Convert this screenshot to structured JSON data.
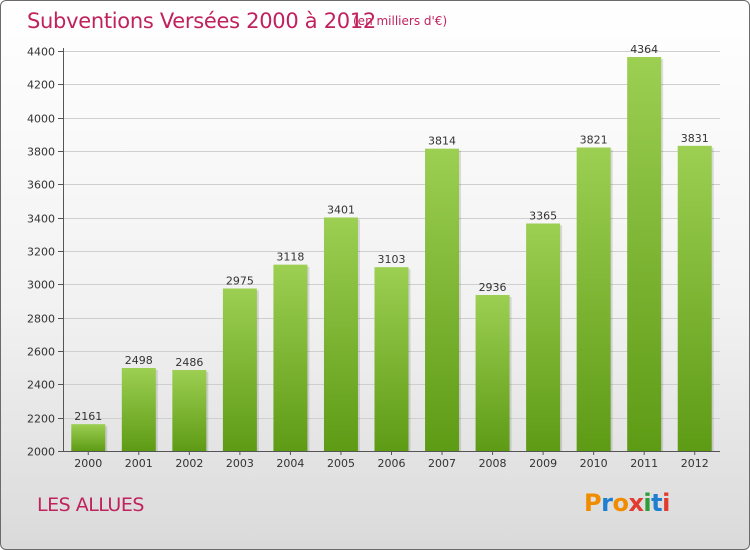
{
  "header": {
    "title": "Subventions Versées 2000 à 2012",
    "subtitle": "(en milliers d'€)"
  },
  "footer": {
    "location": "LES ALLUES",
    "brand": "Proxiti"
  },
  "colors": {
    "accent": "#c0225e",
    "bar_top": "#9ccf52",
    "bar_bottom": "#5e9b15",
    "logo_letters": [
      "#f08c00",
      "#1e7fd0",
      "#f08c00",
      "#e23b2f",
      "#2f9e3a",
      "#1e7fd0",
      "#e23b2f"
    ]
  },
  "chart_data": {
    "type": "bar",
    "title": "Subventions Versées 2000 à 2012",
    "subtitle": "(en milliers d'€)",
    "xlabel": "",
    "ylabel": "",
    "categories": [
      "2000",
      "2001",
      "2002",
      "2003",
      "2004",
      "2005",
      "2006",
      "2007",
      "2008",
      "2009",
      "2010",
      "2011",
      "2012"
    ],
    "values": [
      2161,
      2498,
      2486,
      2975,
      3118,
      3401,
      3103,
      3814,
      2936,
      3365,
      3821,
      4364,
      3831
    ],
    "ylim": [
      2000,
      4400
    ],
    "yticks": [
      2000,
      2200,
      2400,
      2600,
      2800,
      3000,
      3200,
      3400,
      3600,
      3800,
      4000,
      4200,
      4400
    ],
    "grid": true,
    "data_labels": true,
    "legend": "none"
  }
}
